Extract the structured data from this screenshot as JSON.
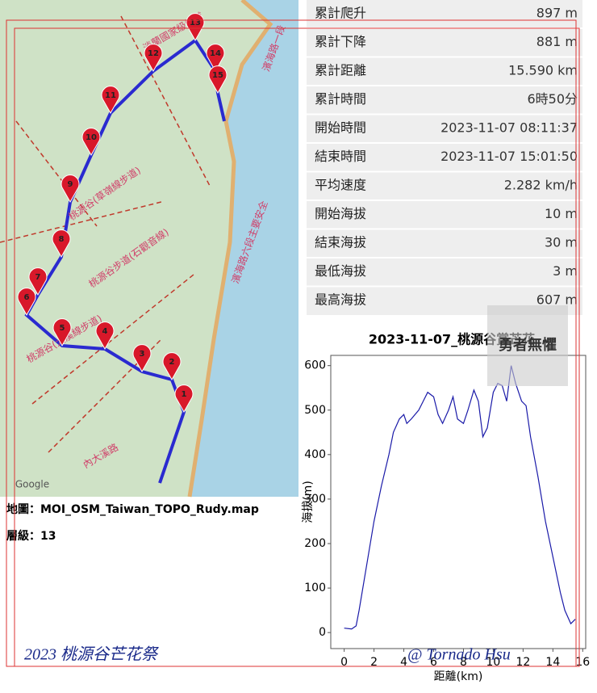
{
  "map": {
    "labels": [
      "淡蘭國家級綠道",
      "濱海路一段",
      "桃源谷(草嶺線步道)",
      "桃源谷(大溪線步道)",
      "桃源谷步道(石觀音線)",
      "濱海路六段主要安全",
      "內大溪路",
      "Google"
    ],
    "markers": [
      "1",
      "2",
      "3",
      "4",
      "5",
      "6",
      "7",
      "8",
      "9",
      "10",
      "11",
      "12",
      "13",
      "14",
      "15"
    ],
    "source": "地圖：MOI_OSM_Taiwan_TOPO_Rudy.map",
    "level": "層級：13"
  },
  "stats": {
    "rows": [
      [
        "累計爬升",
        "897 m"
      ],
      [
        "累計下降",
        "881 m"
      ],
      [
        "累計距離",
        "15.590 km"
      ],
      [
        "累計時間",
        "6時50分"
      ],
      [
        "開始時間",
        "2023-11-07 08:11:37"
      ],
      [
        "結束時間",
        "2023-11-07 15:01:50"
      ],
      [
        "平均速度",
        "2.282 km/h"
      ],
      [
        "開始海拔",
        "10 m"
      ],
      [
        "結束海拔",
        "30 m"
      ],
      [
        "最低海拔",
        "3 m"
      ],
      [
        "最高海拔",
        "607 m"
      ]
    ]
  },
  "chart_data": {
    "type": "line",
    "title": "2023-11-07_桃源谷賞芒花",
    "xlabel": "距離(km)",
    "ylabel": "海拔(m)",
    "color": "#1a1aa8",
    "x": [
      0,
      0.5,
      0.8,
      1,
      1.5,
      2,
      2.5,
      3,
      3.3,
      3.7,
      4,
      4.2,
      4.5,
      5,
      5.3,
      5.6,
      6,
      6.3,
      6.6,
      7,
      7.3,
      7.6,
      8,
      8.3,
      8.7,
      9,
      9.3,
      9.6,
      10,
      10.3,
      10.6,
      10.9,
      11.2,
      11.5,
      11.9,
      12.2,
      12.5,
      13,
      13.5,
      14,
      14.5,
      14.8,
      15.2,
      15.5
    ],
    "values": [
      10,
      8,
      15,
      50,
      150,
      250,
      330,
      400,
      450,
      480,
      490,
      470,
      480,
      500,
      520,
      540,
      530,
      490,
      470,
      500,
      530,
      480,
      470,
      500,
      545,
      520,
      440,
      460,
      540,
      560,
      555,
      520,
      600,
      560,
      520,
      510,
      440,
      350,
      250,
      170,
      90,
      50,
      20,
      30
    ],
    "xlim": [
      -0.9,
      16.2
    ],
    "ylim": [
      -36,
      623
    ],
    "xticks": [
      0,
      2,
      4,
      6,
      8,
      10,
      12,
      14,
      16
    ],
    "yticks": [
      0,
      100,
      200,
      300,
      400,
      500,
      600
    ]
  },
  "watermarks": {
    "event": "2023 桃源谷芒花祭",
    "author": "@ Tornado Hsu",
    "stamp": "勇者無懼"
  }
}
